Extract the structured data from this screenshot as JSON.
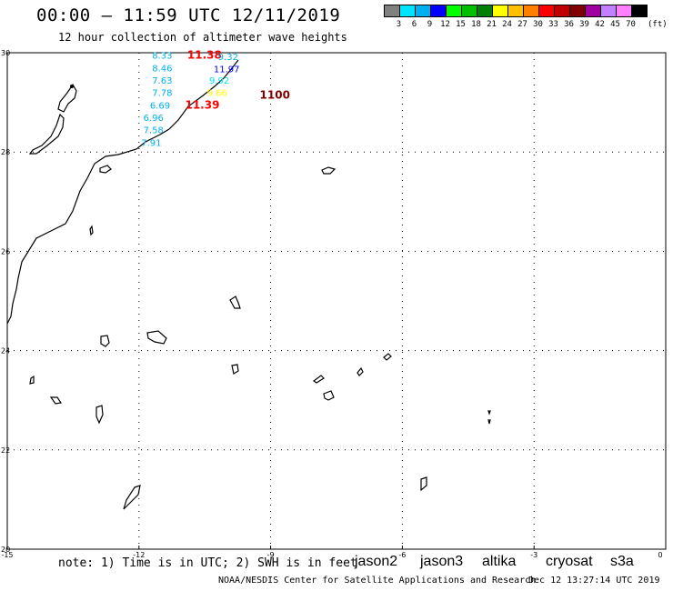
{
  "header": {
    "title": "00:00 – 11:59 UTC 12/11/2019",
    "subtitle": "12 hour collection of altimeter wave heights"
  },
  "color_scale": {
    "colors": [
      "#808080",
      "#00e5ff",
      "#00b0f0",
      "#0000ff",
      "#00ff00",
      "#00c000",
      "#008000",
      "#ffff00",
      "#ffc000",
      "#ff8000",
      "#ff0000",
      "#c00000",
      "#800000",
      "#a000a0",
      "#c080ff",
      "#ff80ff",
      "#000000"
    ],
    "labels": [
      "3",
      "6",
      "9",
      "12",
      "15",
      "18",
      "21",
      "24",
      "27",
      "30",
      "33",
      "36",
      "39",
      "42",
      "45",
      "70"
    ],
    "unit": "(ft)"
  },
  "map": {
    "lon_range": [
      -15,
      0
    ],
    "lat_range": [
      20,
      30
    ],
    "lat_ticks": [
      "30",
      "28",
      "26",
      "24",
      "22",
      "20"
    ],
    "lon_ticks": [
      "-15",
      "-12",
      "-9",
      "-6",
      "-3",
      "0"
    ]
  },
  "chart_data": {
    "type": "scatter",
    "title": "00:00 – 11:59 UTC 12/11/2019",
    "subtitle": "12 hour collection of altimeter wave heights",
    "xlabel": "",
    "ylabel": "",
    "xlim": [
      -15,
      0
    ],
    "ylim": [
      20,
      30
    ],
    "grid": true,
    "wave_heights": [
      {
        "lon": -11.7,
        "lat": 29.95,
        "value": "8.33",
        "color": "#00b0f0"
      },
      {
        "lon": -11.7,
        "lat": 29.7,
        "value": "8.46",
        "color": "#00b0f0"
      },
      {
        "lon": -11.7,
        "lat": 29.45,
        "value": "7.63",
        "color": "#00b0f0"
      },
      {
        "lon": -11.7,
        "lat": 29.2,
        "value": "7.78",
        "color": "#00b0f0"
      },
      {
        "lon": -11.75,
        "lat": 28.95,
        "value": "6.69",
        "color": "#00b0f0"
      },
      {
        "lon": -11.9,
        "lat": 28.7,
        "value": "6.96",
        "color": "#00b0f0"
      },
      {
        "lon": -11.9,
        "lat": 28.45,
        "value": "7.58",
        "color": "#00b0f0"
      },
      {
        "lon": -11.95,
        "lat": 28.2,
        "value": "7.91",
        "color": "#00b0f0"
      },
      {
        "lon": -10.9,
        "lat": 29.95,
        "value": "11.38",
        "color": "#ff0000"
      },
      {
        "lon": -10.95,
        "lat": 28.95,
        "value": "11.39",
        "color": "#ff0000"
      },
      {
        "lon": -10.2,
        "lat": 29.93,
        "value": "9.32",
        "color": "#00b0f0"
      },
      {
        "lon": -10.3,
        "lat": 29.68,
        "value": "11.97",
        "color": "#0000ff"
      },
      {
        "lon": -10.4,
        "lat": 29.45,
        "value": "9.92",
        "color": "#00e5ff"
      },
      {
        "lon": -10.45,
        "lat": 29.2,
        "value": "9.66",
        "color": "#ffff00"
      },
      {
        "lon": -9.25,
        "lat": 29.15,
        "value": "1100",
        "color": "#800000"
      }
    ]
  },
  "footer": {
    "note": "note: 1) Time is in UTC; 2) SWH is in feet",
    "satellites": [
      {
        "name": "jason2",
        "color": "#0000ff"
      },
      {
        "name": "jason3",
        "color": "#008000"
      },
      {
        "name": "altika",
        "color": "#ff8000"
      },
      {
        "name": "cryosat",
        "color": "#c00000"
      },
      {
        "name": "s3a",
        "color": "#800000"
      }
    ],
    "credit": "NOAA/NESDIS Center for Satellite Applications and Research",
    "timestamp": "Dec 12 13:27:14 UTC 2019"
  }
}
